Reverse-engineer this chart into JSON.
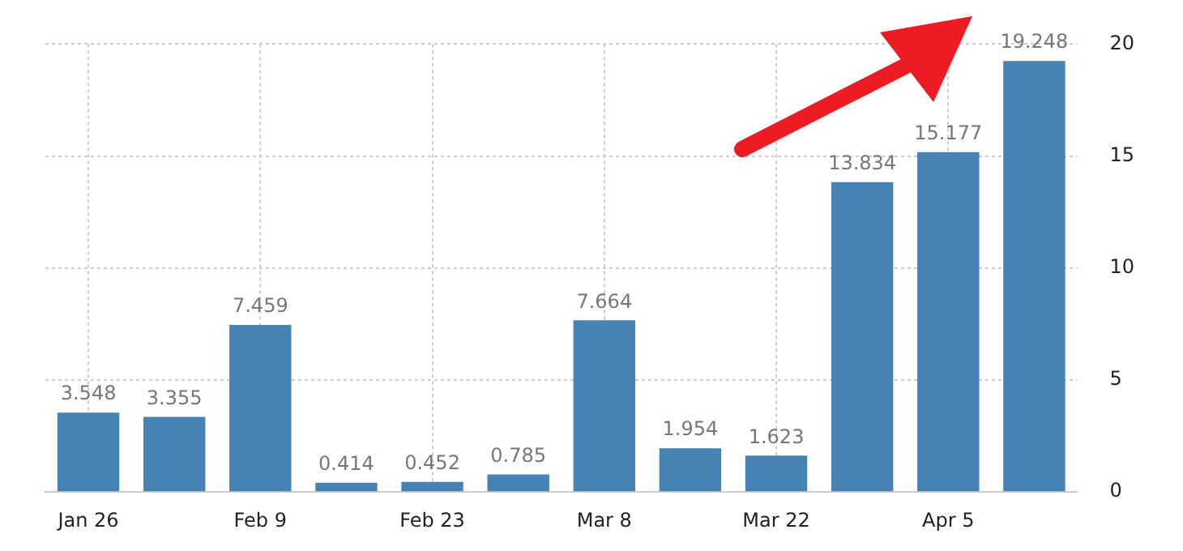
{
  "chart_data": {
    "type": "bar",
    "categories": [
      "Jan 26",
      null,
      "Feb 9",
      null,
      "Feb 23",
      null,
      "Mar 8",
      null,
      "Mar 22",
      null,
      "Apr 5",
      null
    ],
    "values": [
      3.548,
      3.355,
      7.459,
      0.414,
      0.452,
      0.785,
      7.664,
      1.954,
      1.623,
      13.834,
      15.177,
      19.248
    ],
    "color": "#4682b4",
    "ylim": [
      0,
      20
    ],
    "yticks": [
      0,
      5,
      10,
      15,
      20
    ],
    "grid": true,
    "data_labels": true
  }
}
